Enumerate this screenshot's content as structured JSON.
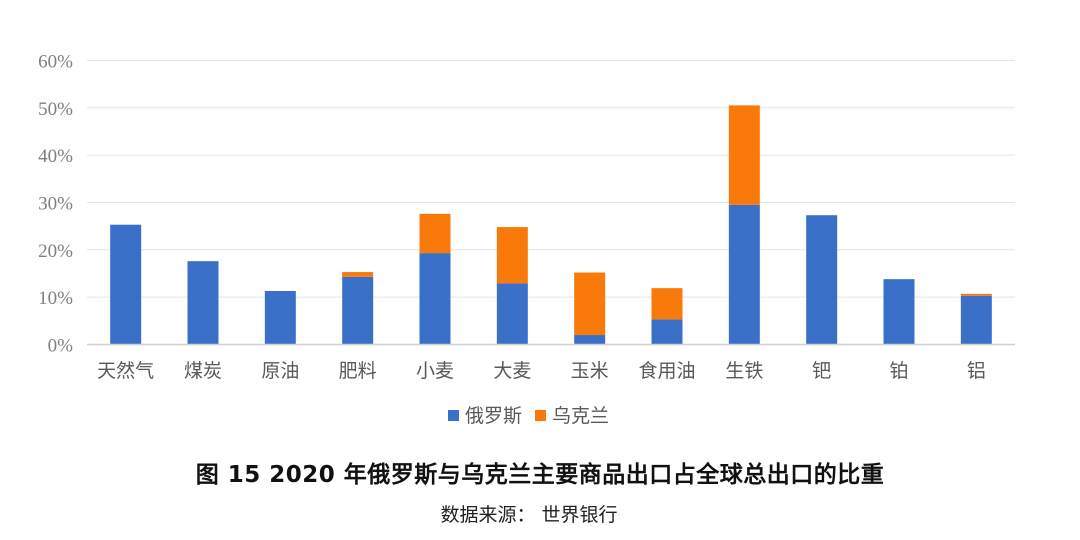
{
  "figure": {
    "title": "图 15 2020 年俄罗斯与乌克兰主要商品出口占全球总出口的比重",
    "source": "数据来源： 世界银行"
  },
  "colors": {
    "russia": "#3a70c8",
    "ukraine": "#f97a0a",
    "grid": "#e3e3e3",
    "axis": "#d0d0d0"
  },
  "chart_data": {
    "type": "bar",
    "stacked": true,
    "title": "2020 年俄罗斯与乌克兰主要商品出口占全球总出口的比重",
    "xlabel": "",
    "ylabel": "",
    "ylim": [
      0,
      60
    ],
    "yticks": [
      "0%",
      "10%",
      "20%",
      "30%",
      "40%",
      "50%",
      "60%"
    ],
    "grid": true,
    "legend_position": "bottom",
    "categories": [
      "天然气",
      "煤炭",
      "原油",
      "肥料",
      "小麦",
      "大麦",
      "玉米",
      "食用油",
      "生铁",
      "钯",
      "铂",
      "铝"
    ],
    "series": [
      {
        "name": "俄罗斯",
        "color": "#3a70c8",
        "values": [
          25.3,
          17.6,
          11.3,
          14.3,
          19.3,
          12.9,
          2.0,
          5.3,
          29.5,
          27.3,
          13.8,
          10.3
        ]
      },
      {
        "name": "乌克兰",
        "color": "#f97a0a",
        "values": [
          0,
          0,
          0,
          1.0,
          8.3,
          11.9,
          13.2,
          6.6,
          21.0,
          0,
          0,
          0.4
        ]
      }
    ]
  }
}
